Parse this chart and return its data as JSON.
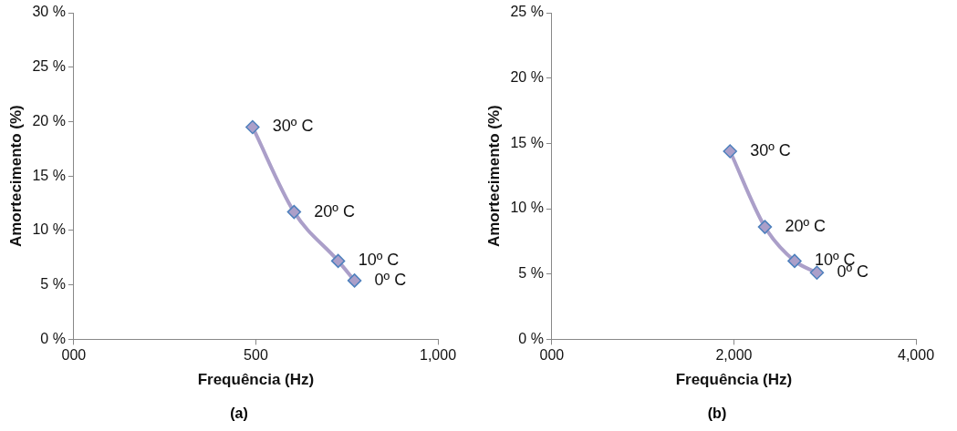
{
  "chart_data": [
    {
      "type": "line",
      "xlabel": "Frequência (Hz)",
      "ylabel": "Amortecimento (%)",
      "marker": "diamond",
      "x": [
        491,
        605,
        726,
        771
      ],
      "series": [
        {
          "color": "#ab9fc9",
          "values": [
            19.5,
            11.7,
            7.2,
            5.4
          ]
        }
      ],
      "xlim": [
        0,
        1000
      ],
      "xticks": [
        {
          "value": 0,
          "label": "000"
        },
        500,
        {
          "value": 1000,
          "label": "1,000"
        }
      ],
      "ylim": [
        0,
        30
      ],
      "yticks": [
        {
          "value": 0,
          "label": "0 %"
        },
        {
          "value": 5,
          "label": "5 %"
        },
        {
          "value": 10,
          "label": "10 %"
        },
        {
          "value": 15,
          "label": "15 %"
        },
        {
          "value": 20,
          "label": "20 %"
        },
        {
          "value": 25,
          "label": "25 %"
        },
        {
          "value": 30,
          "label": "30 %"
        }
      ],
      "annotations": [
        {
          "text": "30º C",
          "x": 491,
          "y": 19.5
        },
        {
          "text": "20º C",
          "x": 605,
          "y": 11.7
        },
        {
          "text": "10º C",
          "x": 726,
          "y": 7.2
        },
        {
          "text": "0º C",
          "x": 771,
          "y": 5.4
        },
        "(a)"
      ]
    },
    {
      "type": "line",
      "xlabel": "Frequência (Hz)",
      "ylabel": "Amortecimento (%)",
      "marker": "diamond",
      "x": [
        1958,
        2341,
        2667,
        2912
      ],
      "series": [
        {
          "color": "#ab9fc9",
          "values": [
            14.4,
            8.6,
            6.0,
            5.1
          ]
        }
      ],
      "xlim": [
        0,
        4000
      ],
      "xticks": [
        {
          "value": 0,
          "label": "000"
        },
        {
          "value": 2000,
          "label": "2,000"
        },
        {
          "value": 4000,
          "label": "4,000"
        }
      ],
      "ylim": [
        0,
        25
      ],
      "yticks": [
        {
          "value": 0,
          "label": "0 %"
        },
        {
          "value": 5,
          "label": "5 %"
        },
        {
          "value": 10,
          "label": "10 %"
        },
        {
          "value": 15,
          "label": "15 %"
        },
        {
          "value": 20,
          "label": "20 %"
        },
        {
          "value": 25,
          "label": "25 %"
        }
      ],
      "annotations": [
        {
          "text": "30º C",
          "x": 1958,
          "y": 14.4
        },
        {
          "text": "20º C",
          "x": 2341,
          "y": 8.6
        },
        {
          "text": "10º C",
          "x": 2667,
          "y": 6.0
        },
        {
          "text": "0º C",
          "x": 2912,
          "y": 5.1
        },
        "(b)"
      ]
    }
  ]
}
